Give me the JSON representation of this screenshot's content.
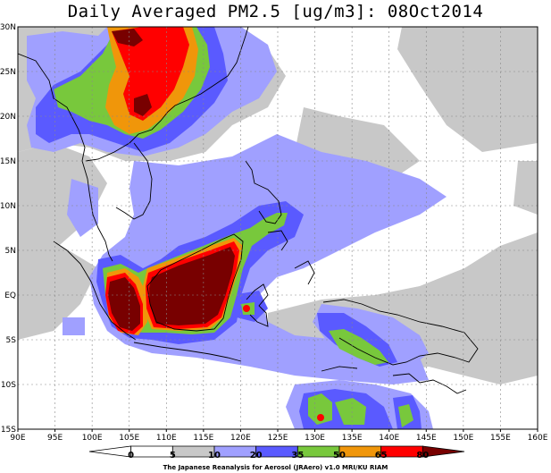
{
  "title": "Daily Averaged PM2.5 [ug/m3]: 08Oct2014",
  "lon_ticks": [
    "90E",
    "95E",
    "100E",
    "105E",
    "110E",
    "115E",
    "120E",
    "125E",
    "130E",
    "135E",
    "140E",
    "145E",
    "150E",
    "155E",
    "160E"
  ],
  "lat_ticks": [
    "30N",
    "25N",
    "20N",
    "15N",
    "10N",
    "5N",
    "EQ",
    "5S",
    "10S",
    "15S"
  ],
  "colorbar": {
    "levels": [
      "0",
      "5",
      "10",
      "20",
      "35",
      "50",
      "65",
      "80"
    ],
    "colors": [
      "#ffffff",
      "#ffffff",
      "#c8c8c8",
      "#a0a0ff",
      "#5a5aff",
      "#78c83c",
      "#f0960a",
      "#ff0000",
      "#780000"
    ]
  },
  "colors": {
    "lvl_5_10": "#c8c8c8",
    "lvl_10_20": "#a0a0ff",
    "lvl_20_35": "#5a5aff",
    "lvl_35_50": "#78c83c",
    "lvl_50_65": "#f0960a",
    "lvl_65_80": "#ff0000",
    "lvl_80_plus": "#780000"
  },
  "credit": "The Japanese Reanalysis for Aerosol (JRAero) v1.0 MRI/KU RIAM"
}
